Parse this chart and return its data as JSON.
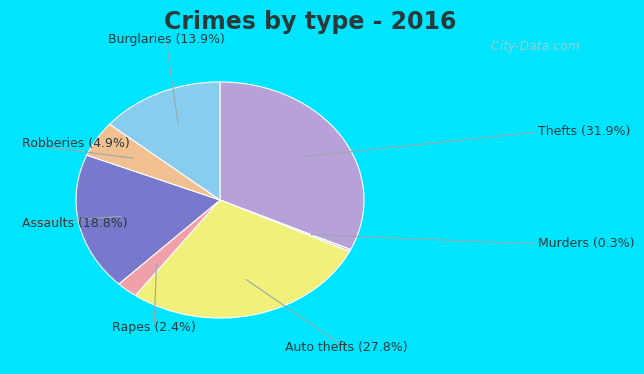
{
  "title": "Crimes by type - 2016",
  "labels": [
    "Thefts (31.9%)",
    "Murders (0.3%)",
    "Auto thefts (27.8%)",
    "Rapes (2.4%)",
    "Assaults (18.8%)",
    "Robberies (4.9%)",
    "Burglaries (13.9%)"
  ],
  "values": [
    31.9,
    0.3,
    27.8,
    2.4,
    18.8,
    4.9,
    13.9
  ],
  "colors": [
    "#b8a0d8",
    "#cccccc",
    "#f0f07a",
    "#f0a0a8",
    "#7878cc",
    "#f0c090",
    "#88ccee"
  ],
  "bg_cyan": "#00e5ff",
  "bg_green_top": "#d0ece0",
  "bg_green_bot": "#c0e8d0",
  "title_fontsize": 17,
  "label_fontsize": 9,
  "watermark": "  City-Data.com",
  "startangle": 90
}
